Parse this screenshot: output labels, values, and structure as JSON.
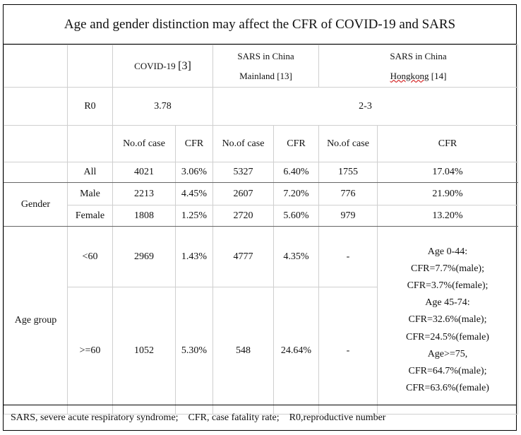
{
  "title": "Age and gender distinction may affect the CFR of COVID-19 and SARS",
  "header": {
    "covid": {
      "name": "COVID-19",
      "ref": "[3]"
    },
    "sars_mainland": {
      "line1": "SARS in China",
      "line2": "Mainland [13]"
    },
    "sars_hk": {
      "line1": "SARS in China",
      "line2_word": "Hongkong",
      "line2_ref": " [14]"
    }
  },
  "r0": {
    "label": "R0",
    "covid": "3.78",
    "sars": "2-3"
  },
  "subheader": {
    "cases1": "No.of case",
    "cfr1": "CFR",
    "cases2": "No.of case",
    "cfr2": "CFR",
    "cases3": "No.of case",
    "cfr3": "CFR"
  },
  "rows": {
    "all": {
      "label": "All",
      "v": [
        "4021",
        "3.06%",
        "5327",
        "6.40%",
        "1755",
        "17.04%"
      ]
    },
    "gender_label": "Gender",
    "male": {
      "label": "Male",
      "v": [
        "2213",
        "4.45%",
        "2607",
        "7.20%",
        "776",
        "21.90%"
      ]
    },
    "female": {
      "label": "Female",
      "v": [
        "1808",
        "1.25%",
        "2720",
        "5.60%",
        "979",
        "13.20%"
      ]
    },
    "age_label": "Age group",
    "lt60": {
      "label": "<60",
      "v": [
        "2969",
        "1.43%",
        "4777",
        "4.35%",
        "-"
      ]
    },
    "ge60": {
      "label": ">=60",
      "v": [
        "1052",
        "5.30%",
        "548",
        "24.64%",
        "-"
      ]
    }
  },
  "hk_age_cfr": [
    "Age 0-44:",
    "CFR=7.7%(male);",
    "CFR=3.7%(female);",
    "Age 45-74:",
    "CFR=32.6%(male);",
    "CFR=24.5%(female)",
    "Age>=75,",
    "CFR=64.7%(male);",
    "CFR=63.6%(female)"
  ],
  "footer": "SARS, severe acute respiratory syndrome;    CFR, case fatality rate;    R0,reproductive number"
}
